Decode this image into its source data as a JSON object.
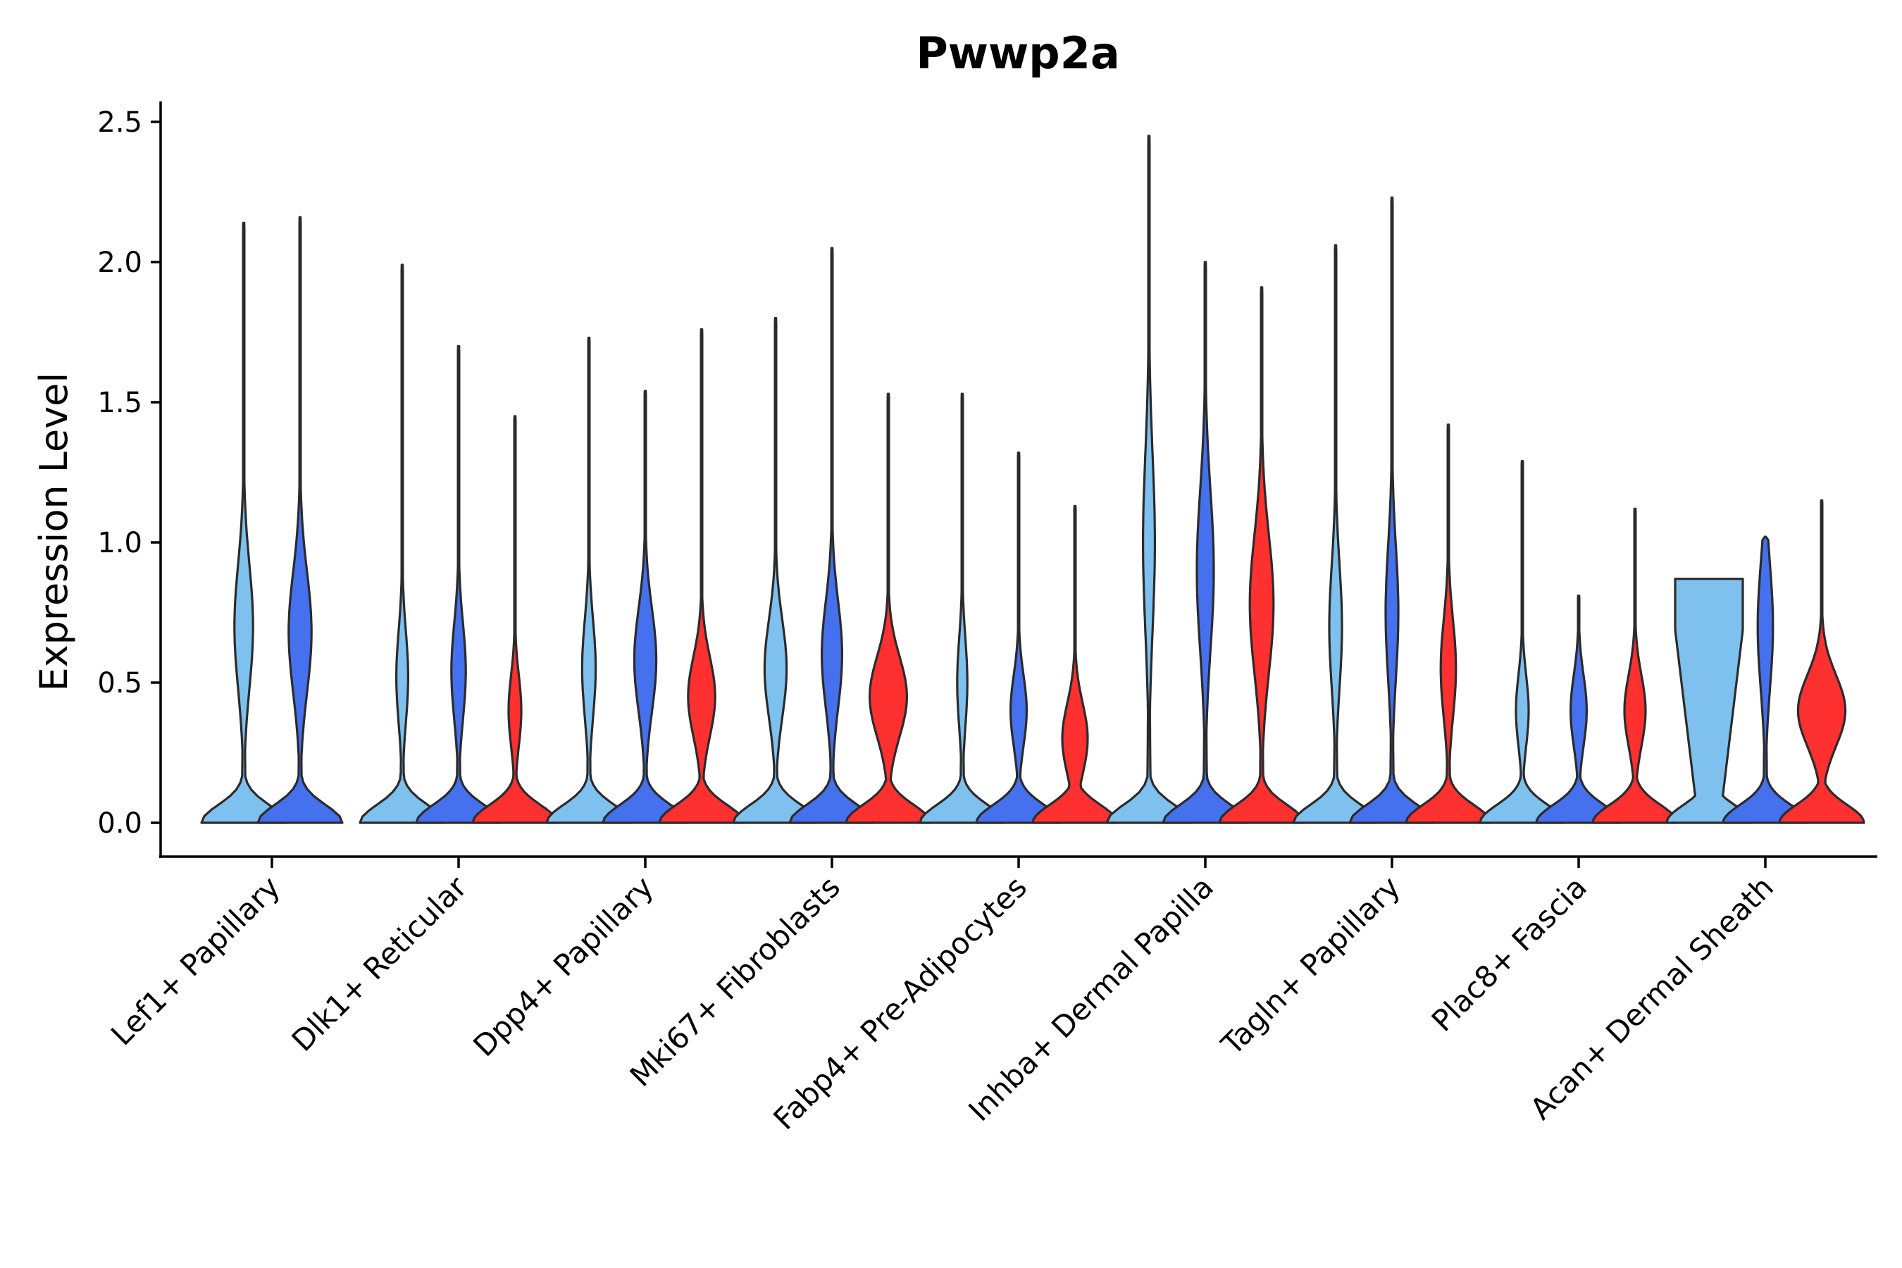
{
  "chart_data": {
    "type": "violin",
    "title": "Pwwp2a",
    "xlabel": "",
    "ylabel": "Expression Level",
    "ylim": [
      -0.12,
      2.58
    ],
    "yticks": [
      0.0,
      0.5,
      1.0,
      1.5,
      2.0,
      2.5
    ],
    "ytick_labels": [
      "0.0",
      "0.5",
      "1.0",
      "1.5",
      "2.0",
      "2.5"
    ],
    "group_colors": {
      "a": "#7ec0ee",
      "b": "#4570ee",
      "c": "#ff3030"
    },
    "categories": [
      {
        "label": "Lef1+ Papillary",
        "violins": [
          {
            "group": "a",
            "max": 2.14,
            "mode": 0.7,
            "upper_width": 0.22
          },
          {
            "group": "b",
            "max": 2.16,
            "mode": 0.68,
            "upper_width": 0.27
          }
        ]
      },
      {
        "label": "Dlk1+ Reticular",
        "violins": [
          {
            "group": "a",
            "max": 1.99,
            "mode": 0.52,
            "upper_width": 0.14
          },
          {
            "group": "b",
            "max": 1.7,
            "mode": 0.54,
            "upper_width": 0.17
          },
          {
            "group": "c",
            "max": 1.45,
            "mode": 0.4,
            "upper_width": 0.15
          }
        ]
      },
      {
        "label": "Dpp4+ Papillary",
        "violins": [
          {
            "group": "a",
            "max": 1.73,
            "mode": 0.55,
            "upper_width": 0.16
          },
          {
            "group": "b",
            "max": 1.54,
            "mode": 0.58,
            "upper_width": 0.26
          },
          {
            "group": "c",
            "max": 1.76,
            "mode": 0.45,
            "upper_width": 0.32
          }
        ]
      },
      {
        "label": "Mki67+ Fibroblasts",
        "violins": [
          {
            "group": "a",
            "max": 1.8,
            "mode": 0.55,
            "upper_width": 0.26
          },
          {
            "group": "b",
            "max": 2.05,
            "mode": 0.6,
            "upper_width": 0.24
          },
          {
            "group": "c",
            "max": 1.53,
            "mode": 0.45,
            "upper_width": 0.44
          }
        ]
      },
      {
        "label": "Fabp4+ Pre-Adipocytes",
        "violins": [
          {
            "group": "a",
            "max": 1.53,
            "mode": 0.5,
            "upper_width": 0.12
          },
          {
            "group": "b",
            "max": 1.32,
            "mode": 0.4,
            "upper_width": 0.19
          },
          {
            "group": "c",
            "max": 1.13,
            "mode": 0.3,
            "upper_width": 0.3
          }
        ]
      },
      {
        "label": "Inhba+ Dermal Papilla",
        "violins": [
          {
            "group": "a",
            "max": 2.45,
            "mode": 1.0,
            "upper_width": 0.14
          },
          {
            "group": "b",
            "max": 2.0,
            "mode": 0.9,
            "upper_width": 0.2
          },
          {
            "group": "c",
            "max": 1.91,
            "mode": 0.78,
            "upper_width": 0.28
          }
        ]
      },
      {
        "label": "Tagln+ Papillary",
        "violins": [
          {
            "group": "a",
            "max": 2.06,
            "mode": 0.7,
            "upper_width": 0.15
          },
          {
            "group": "b",
            "max": 2.23,
            "mode": 0.75,
            "upper_width": 0.15
          },
          {
            "group": "c",
            "max": 1.42,
            "mode": 0.55,
            "upper_width": 0.18
          }
        ]
      },
      {
        "label": "Plac8+ Fascia",
        "violins": [
          {
            "group": "a",
            "max": 1.29,
            "mode": 0.4,
            "upper_width": 0.15
          },
          {
            "group": "b",
            "max": 0.81,
            "mode": 0.4,
            "upper_width": 0.19
          },
          {
            "group": "c",
            "max": 1.12,
            "mode": 0.4,
            "upper_width": 0.25
          }
        ]
      },
      {
        "label": "Acan+ Dermal Sheath",
        "violins": [
          {
            "group": "a",
            "max": 0.87,
            "mode": 0.6,
            "upper_width": 0.8,
            "flat_top": true
          },
          {
            "group": "b",
            "max": 1.02,
            "mode": 0.7,
            "upper_width": 0.18
          },
          {
            "group": "c",
            "max": 1.15,
            "mode": 0.4,
            "upper_width": 0.56
          }
        ]
      }
    ]
  }
}
